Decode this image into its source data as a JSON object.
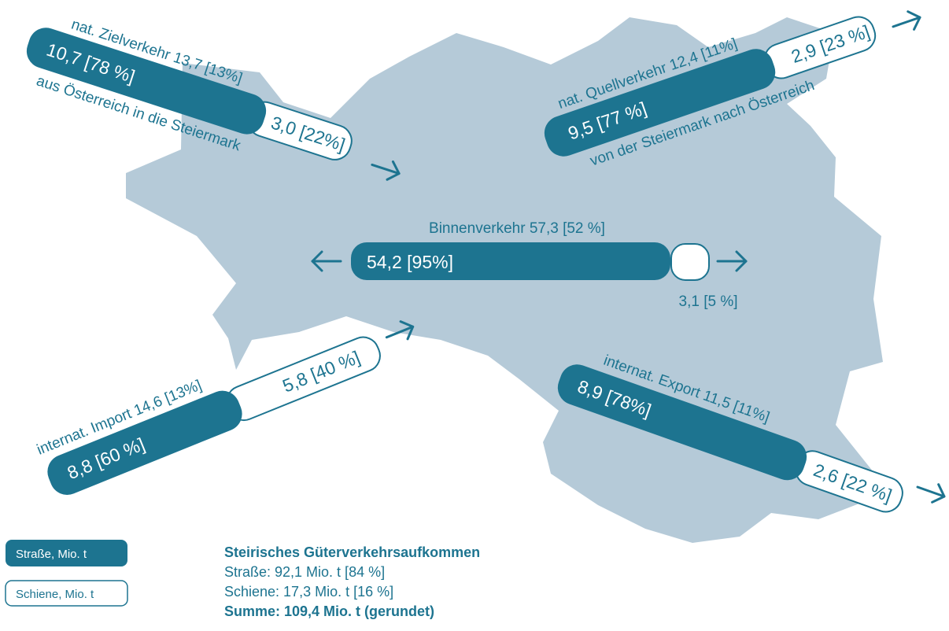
{
  "flows": [
    {
      "label": "nat. Zielverkehr 13,7 [13%]",
      "sublabel": "aus Österreich in die Steiermark",
      "road": "10,7 [78 %]",
      "rail": "3,0 [22%]"
    },
    {
      "label": "nat. Quellverkehr 12,4 [11%]",
      "sublabel": "von der Steiermark nach Österreich",
      "road": "9,5 [77 %]",
      "rail": "2,9 [23 %]"
    },
    {
      "label": "Binnenverkehr 57,3 [52 %]",
      "road": "54,2 [95%]",
      "rail": "3,1 [5 %]"
    },
    {
      "label": "internat. Import 14,6 [13%]",
      "road": "8,8 [60 %]",
      "rail": "5,8 [40 %]"
    },
    {
      "label": "internat. Export 11,5 [11%]",
      "road": "8,9 [78%]",
      "rail": "2,6 [22 %]"
    }
  ],
  "legend": [
    "Straße, Mio. t",
    "Schiene, Mio. t"
  ],
  "summary": {
    "title": "Steirisches Güterverkehrsaufkommen",
    "lines": [
      "Straße: 92,1 Mio. t [84 %]",
      "Schiene: 17,3 Mio. t [16 %]"
    ],
    "total": "Summe: 109,4 Mio. t (gerundet)"
  }
}
